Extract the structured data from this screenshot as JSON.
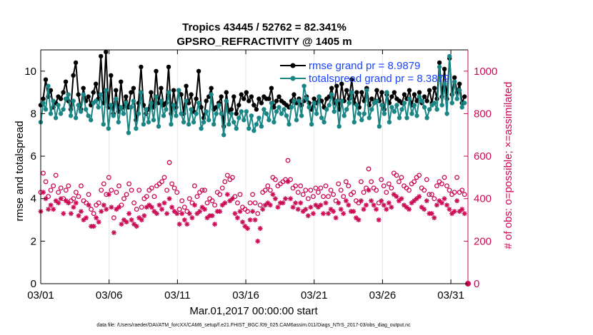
{
  "chart_data": {
    "type": "line",
    "title": "Tropics 43445 / 52762 = 82.341%",
    "subtitle": "GPSRO_REFRACTIVITY @ 1405 m",
    "xlabel": "Mar.01,2017 00:00:00 start",
    "ylabel": "rmse and totalspread",
    "ylabel_right": "# of obs: o=possible; ×=assimilated",
    "x_ticks": [
      "03/01",
      "03/06",
      "03/11",
      "03/16",
      "03/21",
      "03/26",
      "03/31"
    ],
    "x_tick_days": [
      0,
      5,
      10,
      15,
      20,
      25,
      30
    ],
    "xlim_days": [
      0,
      31.25
    ],
    "ylim": [
      0,
      11
    ],
    "y_ticks": [
      0,
      2,
      4,
      6,
      8,
      10
    ],
    "ylim_right": [
      0,
      1100
    ],
    "y_ticks_right": [
      0,
      200,
      400,
      600,
      800,
      1000
    ],
    "grid": "vertical",
    "legend_position": "top-right",
    "series": [
      {
        "name": "rmse grand pr = 8.9879",
        "color": "#000000",
        "axis": "left",
        "marker": "dot",
        "values": [
          8.4,
          8.7,
          9.6,
          8.8,
          9.1,
          8.3,
          8.5,
          8.8,
          8.7,
          9.0,
          9.5,
          8.6,
          8.2,
          9.8,
          10.4,
          8.9,
          8.2,
          9.2,
          8.6,
          8.8,
          8.4,
          9.0,
          9.4,
          8.7,
          10.7,
          8.5,
          10.9,
          8.3,
          9.8,
          8.0,
          9.1,
          8.1,
          9.5,
          8.3,
          8.8,
          8.3,
          9.0,
          9.2,
          7.7,
          8.5,
          10.2,
          8.4,
          8.0,
          8.2,
          9.0,
          8.3,
          10.0,
          8.5,
          9.2,
          8.4,
          8.5,
          10.2,
          8.0,
          9.1,
          8.3,
          9.1,
          8.9,
          8.0,
          9.3,
          8.5,
          8.9,
          8.1,
          8.7,
          10.0,
          8.3,
          7.8,
          8.6,
          8.8,
          9.2,
          8.2,
          8.3,
          8.5,
          8.8,
          7.4,
          9.0,
          8.1,
          8.2,
          8.8,
          8.0,
          8.4,
          8.9,
          8.7,
          9.0,
          8.6,
          8.8,
          8.4,
          8.2,
          8.7,
          8.5,
          8.8,
          8.7,
          8.7,
          9.2,
          8.3,
          8.6,
          8.8,
          8.6,
          8.5,
          8.4,
          8.3,
          8.6,
          8.9,
          8.5,
          8.7,
          8.4,
          8.6,
          8.8,
          8.5,
          8.2,
          8.7,
          8.5,
          8.8,
          8.6,
          8.3,
          8.7,
          8.8,
          9.2,
          8.5,
          9.3,
          8.2,
          9.4,
          8.6,
          9.1,
          8.7,
          9.6,
          8.5,
          9.0,
          8.3,
          9.0,
          8.6,
          9.2,
          8.4,
          8.7,
          8.5,
          9.1,
          8.6,
          9.0,
          8.2,
          8.9,
          8.5,
          8.8,
          9.0,
          8.7,
          8.6,
          8.5,
          8.9,
          8.7,
          9.1,
          8.4,
          8.9,
          8.6,
          9.0,
          8.5,
          8.8,
          8.6,
          9.1,
          8.5,
          9.2,
          8.7,
          10.4,
          8.8,
          10.1,
          8.7,
          10.6,
          8.9,
          9.7,
          9.0,
          9.4,
          8.5,
          8.8
        ]
      },
      {
        "name": "totalspread grand pr = 8.3879",
        "color": "#1a8585",
        "axis": "left",
        "marker": "dot",
        "values": [
          7.6,
          8.5,
          8.2,
          9.3,
          8.0,
          8.6,
          7.8,
          8.4,
          8.0,
          8.2,
          8.7,
          8.9,
          7.9,
          8.6,
          7.8,
          8.4,
          8.1,
          8.9,
          8.2,
          7.9,
          7.7,
          8.5,
          8.6,
          8.3,
          8.9,
          7.5,
          9.1,
          7.3,
          8.4,
          7.9,
          8.7,
          7.6,
          8.3,
          8.0,
          8.5,
          7.1,
          8.3,
          8.6,
          7.3,
          8.0,
          9.0,
          7.5,
          8.2,
          7.6,
          8.5,
          7.7,
          8.8,
          7.4,
          8.6,
          7.9,
          8.2,
          9.0,
          7.5,
          8.4,
          7.9,
          9.1,
          8.0,
          7.6,
          8.6,
          7.5,
          8.2,
          7.6,
          8.0,
          8.5,
          7.3,
          7.6,
          8.1,
          7.7,
          8.9,
          7.5,
          8.0,
          8.4,
          8.0,
          7.0,
          8.6,
          7.5,
          8.0,
          7.6,
          7.3,
          7.8,
          8.1,
          7.7,
          8.1,
          7.3,
          7.9,
          7.2,
          7.5,
          7.8,
          7.4,
          8.2,
          8.0,
          7.7,
          8.5,
          7.6,
          8.1,
          8.3,
          8.0,
          8.2,
          7.9,
          7.5,
          8.3,
          8.6,
          7.7,
          8.6,
          7.9,
          9.3,
          8.7,
          8.3,
          7.5,
          8.5,
          8.0,
          8.8,
          7.8,
          7.6,
          8.2,
          8.4,
          8.9,
          8.1,
          8.6,
          7.4,
          8.6,
          7.9,
          8.2,
          8.5,
          9.0,
          7.6,
          8.4,
          8.0,
          7.7,
          8.0,
          9.1,
          7.8,
          8.2,
          8.5,
          8.6,
          7.4,
          8.4,
          8.0,
          9.0,
          7.6,
          8.3,
          8.1,
          8.4,
          7.8,
          8.2,
          8.5,
          7.8,
          8.7,
          8.0,
          8.4,
          7.9,
          8.8,
          8.6,
          8.3,
          7.8,
          8.2,
          8.4,
          8.5,
          8.2,
          10.2,
          8.4,
          9.4,
          8.0,
          10.7,
          8.5,
          9.5,
          8.7,
          9.1,
          8.3,
          8.5
        ]
      },
      {
        "name": "possible obs",
        "color": "#cc0a55",
        "axis": "right",
        "marker": "circle",
        "values": [
          430,
          520,
          480,
          410,
          440,
          460,
          510,
          430,
          450,
          400,
          440,
          460,
          390,
          400,
          430,
          410,
          460,
          390,
          380,
          420,
          350,
          330,
          370,
          380,
          440,
          470,
          420,
          500,
          440,
          310,
          430,
          460,
          370,
          400,
          420,
          470,
          440,
          380,
          350,
          440,
          360,
          400,
          410,
          440,
          450,
          410,
          460,
          470,
          480,
          500,
          440,
          570,
          470,
          450,
          430,
          350,
          390,
          360,
          340,
          400,
          380,
          460,
          410,
          430,
          440,
          440,
          380,
          400,
          390,
          370,
          430,
          420,
          450,
          480,
          510,
          490,
          500,
          410,
          380,
          420,
          360,
          350,
          340,
          380,
          420,
          380,
          330,
          370,
          430,
          440,
          460,
          440,
          500,
          490,
          460,
          470,
          480,
          490,
          580,
          490,
          450,
          460,
          430,
          460,
          420,
          440,
          400,
          440,
          410,
          450,
          430,
          450,
          410,
          460,
          410,
          440,
          420,
          390,
          470,
          440,
          410,
          480,
          460,
          420,
          430,
          390,
          380,
          480,
          430,
          450,
          540,
          480,
          450,
          440,
          380,
          490,
          460,
          430,
          470,
          450,
          520,
          510,
          480,
          500,
          460,
          450,
          440,
          470,
          480,
          500,
          510,
          450,
          440,
          490,
          420,
          420,
          400,
          460,
          480,
          470,
          500,
          460,
          440,
          420,
          430,
          500,
          430,
          440,
          420
        ]
      },
      {
        "name": "assimilated obs",
        "color": "#cc0a55",
        "axis": "right",
        "marker": "asterisk",
        "values": [
          340,
          430,
          400,
          350,
          370,
          350,
          390,
          380,
          400,
          330,
          390,
          380,
          330,
          360,
          380,
          320,
          340,
          300,
          310,
          370,
          270,
          270,
          310,
          290,
          340,
          370,
          350,
          420,
          360,
          240,
          350,
          360,
          280,
          300,
          290,
          330,
          300,
          280,
          270,
          310,
          300,
          320,
          360,
          370,
          360,
          340,
          330,
          370,
          350,
          380,
          330,
          400,
          360,
          340,
          330,
          280,
          330,
          300,
          280,
          330,
          310,
          370,
          330,
          340,
          360,
          350,
          310,
          320,
          320,
          280,
          340,
          340,
          370,
          380,
          420,
          390,
          400,
          330,
          310,
          340,
          290,
          270,
          260,
          300,
          340,
          300,
          200,
          260,
          350,
          370,
          380,
          370,
          420,
          400,
          360,
          380,
          380,
          400,
          480,
          400,
          360,
          380,
          350,
          380,
          340,
          350,
          320,
          360,
          330,
          370,
          360,
          370,
          330,
          380,
          330,
          350,
          340,
          310,
          380,
          350,
          330,
          390,
          370,
          340,
          340,
          310,
          300,
          390,
          350,
          370,
          440,
          390,
          370,
          350,
          300,
          390,
          370,
          350,
          380,
          360,
          420,
          410,
          390,
          400,
          370,
          360,
          350,
          380,
          390,
          400,
          410,
          360,
          350,
          390,
          330,
          330,
          310,
          370,
          390,
          380,
          400,
          370,
          350,
          330,
          340,
          390,
          340,
          350,
          330
        ]
      }
    ],
    "extra_point": {
      "day": 31.25,
      "right_value": 0,
      "color": "#cc0a55"
    }
  },
  "footer": {
    "datafile": "data file: /Users/raeder/DAI/ATM_forcXX/CAM6_setup/f.e21.FHIST_BGC.f09_025.CAM6assim.011/Diags_NTrS_2017-03/obs_diag_output.nc"
  }
}
